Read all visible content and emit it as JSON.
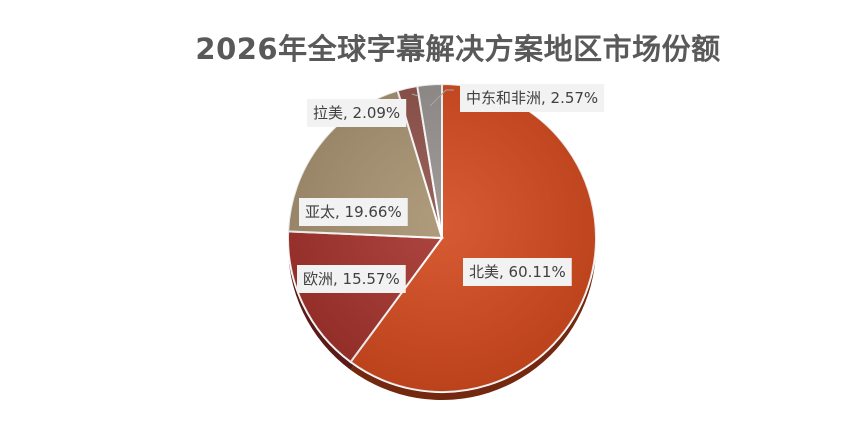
{
  "chart_data": {
    "type": "pie",
    "title": "2026年全球字幕解决方案地区市场份额",
    "categories": [
      "北美",
      "欧洲",
      "亚太",
      "拉美",
      "中东和非洲"
    ],
    "values": [
      60.11,
      15.57,
      19.66,
      2.09,
      2.57
    ],
    "data_labels": [
      "北美, 60.11%",
      "欧洲, 15.57%",
      "亚太, 19.66%",
      "拉美, 2.09%",
      "中东和非洲, 2.57%"
    ],
    "colors": [
      "#d2481c",
      "#a3302a",
      "#a6906e",
      "#8e5048",
      "#95908e"
    ],
    "start_angle_deg": 0,
    "direction": "clockwise",
    "legend": "none"
  }
}
